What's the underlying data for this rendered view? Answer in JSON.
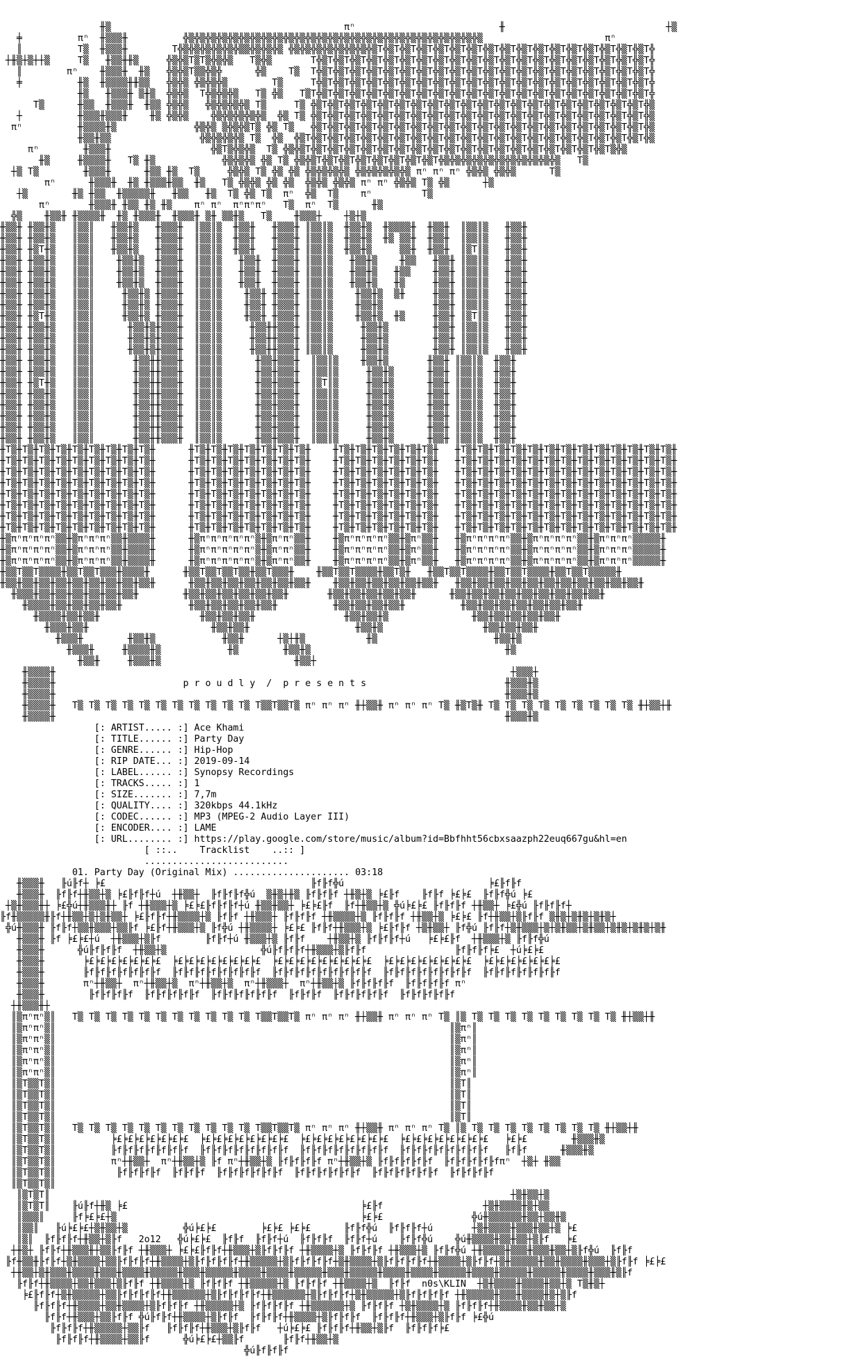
{
  "page": {
    "background_color": "#ffffff",
    "text_color": "#000000",
    "kind": "ascii-nfo-release-file"
  },
  "banner": {
    "presents_text": "p r o u d l y  /  p r e s e n t s",
    "art_year": "2o12",
    "art_signature": "n0s\\KLIN"
  },
  "release": {
    "artist": "Ace Khami",
    "title": "Party Day",
    "genre": "Hip-Hop",
    "rip_date": "2019-09-14",
    "label": "Synopsy Recordings",
    "tracks": "1",
    "size": "7,7m",
    "quality": "320kbps 44.1kHz",
    "codec": "MP3 (MPEG-2 Audio Layer III)",
    "encoder": "LAME",
    "url": "https://play.google.com/store/music/album?id=Bbfhht56cbxsaazph22euq667gu&hl=en",
    "lines": [
      "                 [: ARTIST..... :] Ace Khami",
      "                 [: TITLE...... :] Party Day",
      "                 [: GENRE...... :] Hip-Hop",
      "                 [: RIP DATE... :] 2019-09-14",
      "                 [: LABEL...... :] Synopsy Recordings",
      "                 [: TRACKS..... :] 1",
      "                 [: SIZE....... :] 7,7m",
      "                 [: QUALITY.... :] 320kbps 44.1kHz",
      "                 [: CODEC...... :] MP3 (MPEG-2 Audio Layer III)",
      "                 [: ENCODER.... :] LAME",
      "                 [: URL........ :] https://play.google.com/store/music/album?id=Bbfhht56cbxsaazph22euq667gu&hl=en"
    ]
  },
  "tracklist": {
    "header_lines": [
      "                          [ ::..    Tracklist    ..:: ]",
      "                          .........................."
    ],
    "track_lines": [
      "             01. Party Day (Original Mix) ..................... 03:18",
      ""
    ],
    "tracks": [
      {
        "number": "01",
        "title": "Party Day (Original Mix)",
        "duration": "03:18"
      }
    ]
  },
  "art": {
    "top": [
      "",
      "",
      "                  ╫▒                                          πⁿ                          ╫                             ┼▒",
      "   ╪          πⁿ  ╫▒▒▒╫          ╬▒╬▒╬▒╬▒╬▒╬▒╬▒╬▒╬▒╬▒╬▒╬▒╬▒╬▒╬▒╬▒╬▒╬▒╬▒╬▒╬▒╬▒╬▒╬▒╬▒╬▒╬▒                      πⁿ",
      "   ║          T▒  ╫▒▒▒╫        T╬▒╬▒╬▒╬▒╬▒╬▒▒╬▒╬▒╬▒ ╬▒╬▒╬▒╬▒╬▒╬▒╬▒╬▒T╬▒T╬▒T╬▒T╬▒T╬▒T╬▒T╬▒T╬▒T╬▒T╬▒T╬▒T╬▒T╬▒T╬▒T╬▒T╬▒T╬",
      " ┼╫▒┼▒┼┼▒     T▒   ╫▒▒╫╫▒     ╬▒╬▒T▒T▒╬▒╬▒   T▒╬▒       T╬▒T╬▒T╬▒T╬▒T╬▒T╬▒T╬▒T╬▒T╬▒T╬▒T╬▒T╬▒T╬▒T╬▒T╬▒T╬▒T╬▒T╬▒T╬▒T╬▒T╬",
      "   ║        πⁿ    ╫▒▒▒╫  ╫▒   ╬▒╬▒T▒▒╬▒╬      ╬▒    T▒  T╬▒T╬▒T╬▒T╬▒T╬▒T╬▒T╬▒T╬▒T╬▒T╬▒T╬▒T╬▒T╬▒T╬▒T╬▒T╬▒T╬▒T╬▒T╬▒T╬▒T╬",
      "   ╪          ╫▒  ╫▒▒▒▒╫╫▒▒   ╬▒╬▒ ╬▒╬▒╬▒        T▒     T╬▒T╬▒T╬▒T╬▒T╬▒T╬▒T╬▒T╬▒T╬▒T╬▒T╬▒T╬▒T╬▒T╬▒T╬▒T╬▒T╬▒T╬▒T╬▒T╬▒T╬",
      "              ╫▒   ╫▒▒▒╫ ▒╫▒  ╬▒╬▒  T╬▒╬▒╬▒   T▒ ╬▒   T▒T╬▒T╬▒T╬▒T╬▒T╬▒T╬▒T╬▒T╬▒T╬▒T╬▒T╬▒T╬▒T╬▒T╬▒T╬▒T╬▒T╬▒T╬▒T╬▒T╬▒T╬",
      "      T▒      ╫▒▒  ╫▒▒▒╫  ╫▒▒ ╬▒╬▒   ╬▒╬▒╬▒╬▒ T▒     T▒ ╬▒T╬▒T╬▒T╬▒T╬▒T╬▒T╬▒T╬▒T╬▒T╬▒T╬▒T╬▒T╬▒T╬▒T╬▒T╬▒T╬▒T╬▒T╬▒T╬▒T╬▒",
      "   ┼          ╫▒▒▒╫▒▒▒╫    ╫▒ ╬▒╬▒    ╬▒╬▒╬▒╬▒╬▒  ╬▒ T▒ ╬▒T╬▒T╬▒T╬▒T╬▒T╬▒T╬▒T╬▒T╬▒T╬▒T╬▒T╬▒T╬▒T╬▒T╬▒T╬▒T╬▒T╬▒T╬▒T╬▒T╬▒",
      "  πⁿ          ╫▒▒▒▒╫▒              ╬▒╬▒ ▒╬▒╬▒T▒ ╬▒ T▒   ╬▒T╬▒T╬▒T╬▒T╬▒T╬▒T╬▒T╬▒T╬▒T╬▒T╬▒T╬▒T╬▒T╬▒T╬▒T╬▒T╬▒T╬▒T╬▒T╬▒T╬▒",
      "              ╫▒▒╫▒▒                ╬▒╬▒╬▒╬▒ T▒  ╬▒  ╬▒T╬▒T╬▒T╬▒T╬▒T╬▒T╬▒T╬▒T╬▒T╬▒T╬▒T╬▒T╬▒T╬▒T╬▒T╬▒T╬▒T╬▒T╬▒T╬▒T╬▒T╬▒",
      "     πⁿ        ╫▒▒▒╫                  ╬▒T▒╬▒╬▒  T▒ ╬▒╬▒T╬▒T╬▒T╬▒T╬▒T╬▒T╬▒T╬▒T╬▒T╬▒T╬▒T╬▒T╬▒T╬▒T╬▒T╬▒T╬▒T╬▒T╬▒T▒╬▒",
      "       ╫▒     ╫▒▒▒▒╫   T▒ ╫▒            ╬▒╬▒╬▒ ╬▒ T▒ ╬▒╬▒T╬▒T╬▒T╬▒T╬▒T╬▒T╬▒T╬▒T╬▒╬▒╬▒╬▒╬▒╬▒╬▒╬▒╬▒╬▒╬▒   T▒",
      "  ┼▒ T▒        ╫▒▒▒╫      ╫▒▒ ╫▒  T▒     ╬▒╬▒ T▒ ╬▒ ╬▒ ╬▒╬▒╬▒╬▒ ╬▒╬▒╬▒╬▒╬▒ πⁿ πⁿ πⁿ ╬▒╬▒ ╬▒╬▒      T▒",
      "        πⁿ      ╫▒▒▒╫  ╫▒ ╫▒▒▒╫▒▒  ╫▒   T▒ ╬▒╬▒ ╬▒ ╬▒  ╬▒╬▒ ╬▒╬▒ πⁿ πⁿ ╬▒╬▒ T▒ ╬▒      ┼▒",
      "   ┼▒        ╫▒ ╫▒▒  ╫▒▒▒▒▒╫   ╫▒▒   ╫▒  T▒ ╬▒ T▒  πⁿ  ╬▒  T▒    πⁿ         T▒",
      "       πⁿ       ╫▒▒▒╫ ╫▒▒ ╫▒ ╫▒    πⁿ πⁿ  πⁿπⁿπⁿ   T▒  πⁿ  T▒      ╫▒",
      "  ╬▒    ╫▒▒╫ ╫▒▒▒▒╫  ╫▒ ╫▒▒▒╫  ╫▒▒▒╫ ▒╫ ▒▒╫▒   T▒    ╫▒▒▒┼    ┼▒┼▒",
      "╫▒▒╫ ╫▒▒╫▒   ║▒▒║   ╫▒▒╫▒   ╫▒▒▒╫  ║▒▒║▒  ╫▒▒╫   ╫▒▒▒╫ ║▒▒║▒  ╫▒▒╫▒  ╫▒▒▒▒╫  ╫▒▒╫  ║▒▒║▒   ╫▒▒╫",
      "╫▒▒╫ ╫▒▒╫▒   ║▒▒║   ╫▒▒╫▒   ╫▒▒▒╫  ║▒▒║▒  ╫▒▒╫   ╫▒▒▒╫ ║▒▒║▒  ╫▒▒╫▒  ╫▒ ▒▒╫  ╫▒▒╫  ║▒▒║▒   ╫▒▒╫",
      "╫▒▒╫ ╫▒T╫▒   ║▒▒║   ╫▒▒╫▒   ╫▒▒▒╫  ║▒▒║▒  ╫▒▒╫   ╫▒▒▒╫ ║▒▒║▒  ╫▒▒╫▒     ▒▒╫  ╫▒▒╫  ║▒T║▒   ╫▒▒╫",
      "╫▒▒╫ ╫▒▒╫▒   ║▒▒║    ╫▒▒╫▒  ╫▒▒▒╫  ║▒▒║▒   ╫▒▒╫  ╫▒▒▒╫ ║▒▒║▒   ╫▒▒╫▒    ╫▒▒   ╫▒▒╫ ║▒▒║▒   ╫▒▒╫",
      "╫▒▒╫ ╫▒▒╫▒   ║▒▒║    ╫▒▒╫▒  ╫▒▒▒╫  ║▒▒║▒   ╫▒▒╫  ╫▒▒▒╫ ║▒▒║▒   ╫▒▒╫▒   ╫▒▒    ╫▒▒╫ ║▒▒║▒   ╫▒▒╫",
      "╫▒▒╫ ╫▒▒╫▒   ║▒▒║    ╫▒▒╫▒  ╫▒▒▒╫  ║▒▒║▒   ╫▒▒╫  ╫▒▒▒╫ ║▒▒║▒   ╫▒▒╫▒   ╫▒     ╫▒▒╫ ║▒▒║▒   ╫▒▒╫",
      "╫▒▒╫ ╫▒▒╫▒   ║▒▒║     ╫▒▒╫▒ ╫▒▒▒╫  ║▒▒║▒    ╫▒▒╫ ╫▒▒▒╫ ║▒▒║▒    ╫▒▒╫▒  ▒╫     ╫▒▒╫ ║▒▒║▒   ╫▒▒╫",
      "╫▒▒╫ ╫▒▒╫▒   ║▒▒║     ╫▒▒╫▒ ╫▒▒▒╫  ║▒▒║▒    ╫▒▒╫ ╫▒▒▒╫ ║▒▒║▒    ╫▒▒╫▒         ╫▒▒╫ ║▒▒║▒   ╫▒▒╫",
      "╫▒▒╫ ╫▒T╫▒   ║▒▒║     ╫▒▒╫▒ ╫▒▒▒╫  ║▒▒║▒    ╫▒▒╫ ╫▒▒▒╫ ║▒▒║▒    ╫▒▒╫▒  ╫▒     ╫▒▒╫ ║▒T║▒   ╫▒▒╫",
      "╫▒▒╫ ╫▒▒╫▒   ║▒▒║      ╫▒▒╫▒╫▒▒▒╫  ║▒▒║▒     ╫▒▒╫╫▒▒▒╫ ║▒▒║▒     ╫▒▒╫▒        ╫▒▒╫ ║▒▒║▒   ╫▒▒╫",
      "╫▒▒╫ ╫▒▒╫▒   ║▒▒║      ╫▒▒╫▒╫▒▒▒╫  ║▒▒║▒     ╫▒▒╫╫▒▒▒╫ ║▒▒║▒     ╫▒▒╫▒        ╫▒▒╫ ║▒▒║▒   ╫▒▒╫",
      "╫▒▒╫ ╫▒▒╫▒   ║▒▒║      ╫▒▒╫▒╫▒▒▒╫  ║▒▒║▒     ╫▒▒╫╫▒▒▒╫ ║▒▒║▒     ╫▒▒╫▒        ╫▒▒╫ ║▒▒║▒   ╫▒▒╫",
      "╫▒▒╫ ╫▒▒╫▒   ║▒▒║       ╫▒▒╫╫▒▒▒╫  ║▒▒║▒      ╫▒▒╫▒▒▒╫  ║▒▒║▒    ╫▒▒╫▒       ╫▒▒╫ ║▒▒║▒  ╫▒▒╫",
      "╫▒▒╫ ╫▒▒╫▒   ║▒▒║       ╫▒▒╫╫▒▒▒╫  ║▒▒║▒      ╫▒▒╫▒▒▒╫  ║▒▒║▒     ╫▒▒╫▒      ╫▒▒╫ ║▒▒║▒  ╫▒▒╫",
      "╫▒▒╫ ╫▒T╫▒   ║▒▒║       ╫▒▒╫╫▒▒▒╫  ║▒▒║▒      ╫▒▒╫▒▒▒╫  ║▒T║▒     ╫▒▒╫▒      ╫▒▒╫ ║▒▒║▒  ╫▒▒╫",
      "╫▒▒╫ ╫▒▒╫▒   ║▒▒║       ╫▒▒╫╫▒▒▒╫  ║▒▒║▒      ╫▒▒╫▒▒▒╫  ║▒▒║▒     ╫▒▒╫▒      ╫▒▒╫ ║▒▒║▒  ╫▒▒╫",
      "╫▒▒╫ ╫▒▒╫▒   ║▒▒║       ╫▒▒╫╫▒▒▒╫  ║▒▒║▒      ╫▒▒╫▒▒▒╫  ║▒▒║▒     ╫▒▒╫▒      ╫▒▒╫ ║▒▒║▒  ╫▒▒╫",
      "╫▒▒╫ ╫▒▒╫▒   ║▒▒║       ╫▒▒╫╫▒▒▒╫  ║▒▒║▒      ╫▒▒╫▒▒▒╫  ║▒▒║▒     ╫▒▒╫▒      ╫▒▒╫ ║▒▒║▒  ╫▒▒╫",
      "╫▒▒╫ ╫▒▒╫▒   ║▒▒║       ╫▒▒╫╫▒▒▒╫  ║▒▒║▒      ╫▒▒╫▒▒▒╫  ║▒▒║▒     ╫▒▒╫▒      ╫▒▒╫ ║▒▒║▒  ╫▒▒╫",
      "╫▒▒╫ ╫▒▒╫▒   ║▒▒║       ╫▒▒╫╫▒▒▒╫  ║▒▒║▒      ╫▒▒╫▒▒▒╫  ║▒▒║▒     ╫▒▒╫▒      ╫▒▒╫ ║▒▒║▒  ╫▒▒╫",
      "╫T▒╫T▒╫T▒╫T▒╫T▒╫T▒╫T▒╫T▒╫T▒╫      ╫T▒╫T▒╫T▒╫T▒╫T▒╫T▒╫T▒╫    ╫T▒╫T▒╫T▒╫T▒╫T▒╫T▒╫   ╫T▒╫T▒╫T▒╫T▒╫T▒╫T▒╫T▒╫T▒╫T▒╫T▒╫T▒╫T▒╫T▒╫",
      "╫T▒╫T▒╫T▒╫T▒╫T▒╫T▒╫T▒╫T▒╫T▒╫      ╫T▒╫T▒╫T▒╫T▒╫T▒╫T▒╫T▒╫    ╫T▒╫T▒╫T▒╫T▒╫T▒╫T▒╫   ╫T▒╫T▒╫T▒╫T▒╫T▒╫T▒╫T▒╫T▒╫T▒╫T▒╫T▒╫T▒╫T▒╫",
      "╫T▒╫T▒╫T▒╫T▒╫T▒╫T▒╫T▒╫T▒╫T▒╫      ╫T▒╫T▒╫T▒╫T▒╫T▒╫T▒╫T▒╫    ╫T▒╫T▒╫T▒╫T▒╫T▒╫T▒╫   ╫T▒╫T▒╫T▒╫T▒╫T▒╫T▒╫T▒╫T▒╫T▒╫T▒╫T▒╫T▒╫T▒╫",
      "╫T▒╫T▒╫T▒╫T▒╫T▒╫T▒╫T▒╫T▒╫T▒╫      ╫T▒╫T▒╫T▒╫T▒╫T▒╫T▒╫T▒╫    ╫T▒╫T▒╫T▒╫T▒╫T▒╫T▒╫   ╫T▒╫T▒╫T▒╫T▒╫T▒╫T▒╫T▒╫T▒╫T▒╫T▒╫T▒╫T▒╫T▒╫",
      "╫T▒╫T▒╫T▒╫T▒╫T▒╫T▒╫T▒╫T▒╫T▒╫      ╫T▒╫T▒╫T▒╫T▒╫T▒╫T▒╫T▒╫    ╫T▒╫T▒╫T▒╫T▒╫T▒╫T▒╫   ╫T▒╫T▒╫T▒╫T▒╫T▒╫T▒╫T▒╫T▒╫T▒╫T▒╫T▒╫T▒╫T▒╫",
      "╫T▒╫T▒╫T▒╫T▒╫T▒╫T▒╫T▒╫T▒╫T▒╫      ╫T▒╫T▒╫T▒╫T▒╫T▒╫T▒╫T▒╫    ╫T▒╫T▒╫T▒╫T▒╫T▒╫T▒╫   ╫T▒╫T▒╫T▒╫T▒╫T▒╫T▒╫T▒╫T▒╫T▒╫T▒╫T▒╫T▒╫T▒╫",
      "╫T▒╫T▒╫T▒╫T▒╫T▒╫T▒╫T▒╫T▒╫T▒╫      ╫T▒╫T▒╫T▒╫T▒╫T▒╫T▒╫T▒╫    ╫T▒╫T▒╫T▒╫T▒╫T▒╫T▒╫   ╫T▒╫T▒╫T▒╫T▒╫T▒╫T▒╫T▒╫T▒╫T▒╫T▒╫T▒╫T▒╫T▒╫",
      "╫T▒╫T▒╫T▒╫T▒╫T▒╫T▒╫T▒╫T▒╫T▒╫      ╫T▒╫T▒╫T▒╫T▒╫T▒╫T▒╫T▒╫    ╫T▒╫T▒╫T▒╫T▒╫T▒╫T▒╫   ╫T▒╫T▒╫T▒╫T▒╫T▒╫T▒╫T▒╫T▒╫T▒╫T▒╫T▒╫T▒╫T▒╫",
      "╫▒πⁿπⁿπⁿπⁿ▒▒╫▒πⁿπⁿπⁿ▒▒╫▒▒▒▒╫      ╫▒πⁿπⁿπⁿπⁿπⁿ▒╫▒πⁿπⁿ▒▒╫    ╫▒πⁿπⁿπⁿπⁿ▒▒╫▒πⁿ▒▒╫   ╫▒πⁿπⁿπⁿπⁿ▒▒╫▒πⁿπⁿπⁿπⁿ▒▒╫▒πⁿπⁿπⁿ▒▒▒▒▒╫",
      "╫▒πⁿπⁿπⁿπⁿ▒▒╫▒πⁿπⁿπⁿ▒▒╫▒▒▒▒╫      ╫▒πⁿπⁿπⁿπⁿπⁿ▒╫▒πⁿπⁿ▒▒╫    ╫▒πⁿπⁿπⁿπⁿ▒▒╫▒πⁿ▒▒╫   ╫▒πⁿπⁿπⁿπⁿ▒▒╫▒πⁿπⁿπⁿπⁿ▒▒╫▒πⁿπⁿπⁿ▒▒▒▒▒╫",
      "╫▒πⁿπⁿπⁿπⁿ▒▒╫▒πⁿπⁿπⁿ▒▒╫▒▒▒▒╫      ╫▒πⁿπⁿπⁿπⁿπⁿ▒╫▒πⁿπⁿ▒▒╫    ╫▒πⁿπⁿπⁿπⁿ▒▒╫▒πⁿ▒▒╫   ╫▒πⁿπⁿπⁿπⁿ▒▒╫▒πⁿπⁿπⁿπⁿ▒▒╫▒πⁿπⁿπⁿ▒▒▒▒▒╫",
      "╫▒▒T▒▒T▒▒▒▒╫▒▒T▒▒T▒▒▒╫▒▒▒▒╫      ╫▒▒T▒▒T▒▒T▒▒╫▒▒T▒▒▒╫    ╫▒▒T▒▒T▒▒▒▒╫▒▒T▒╫   ╫▒▒T▒▒T▒▒▒▒╫▒▒T▒▒T▒▒▒▒╫▒▒T▒▒T▒▒▒▒▒╫",
      "╫▒▒╫▒▒╫▒▒╫▒▒╫▒▒╫▒▒╫▒▒╫▒▒╫▒▒╫      ╫▒▒╫▒▒╫▒▒╫▒▒╫▒▒╫▒▒╫▒▒╫    ╫▒▒╫▒▒╫▒▒╫▒▒╫▒▒╫▒▒╫   ╫▒▒╫▒▒╫▒▒╫▒▒╫▒▒╫▒▒╫▒▒╫▒▒╫▒▒╫▒▒╫▒▒╫",
      "  ╫▒▒▒╫▒▒╫▒▒╫▒▒╫▒▒╫▒▒╫▒▒╫        ╫▒▒╫▒▒╫▒▒╫▒▒╫▒▒╫▒▒╫       ╫▒▒╫▒▒╫▒▒╫▒▒╫▒▒╫      ╫▒▒╫▒▒╫▒▒╫▒▒╫▒▒╫▒▒╫▒▒╫▒▒╫▒▒╫",
      "    ╫▒▒▒▒╫▒▒╫▒▒╫▒▒╫▒▒╫            ╫▒▒╫▒▒╫▒▒╫▒▒╫▒▒╫          ╫▒▒╫▒▒╫▒▒╫▒▒╫          ╫▒▒╫▒▒╫▒▒╫▒▒╫▒▒╫▒▒╫▒▒╫",
      "      ╫▒▒▒▒╫▒▒╫▒▒╫                  ╫▒▒╫▒▒╫▒▒╫                ╫▒▒╫▒▒╫▒               ╫▒▒╫▒▒╫▒▒╫▒▒╫▒▒╫",
      "        ╫▒▒▒╫▒▒╫                      ╫▒▒╫▒▒╫                   ╫▒▒╫▒                  ╫▒▒╫▒▒╫▒▒╫",
      "          ╫▒▒▒╫        ╫▒▒╫▒            ╫▒▒╫      ┼▒┼╫▒           ╫▒                     ╫▒▒╫▒",
      "            ╫▒▒▒╫     ╫▒▒▒▒╫▒            ╫▒        ╫▒▒╫▒                                   ╫▒",
      "              ╫▒▒╫     ╫▒▒▒╫▒                        ╫▒▒┼"
    ],
    "presents_block": [
      "    ╫▒▒▒▒╫                                                                                  ┼▒▒▒┼",
      "    ╫▒▒▒▒╫                       p r o u d l y  /  p r e s e n t s                         ╫▒▒▒╫▒",
      "    ╫▒▒▒▒╫                                                                                 ╫▒▒▒╫▒",
      "    ╫▒▒▒▒╫   T▒ T▒ T▒ T▒ T▒ T▒ T▒ T▒ T▒ T▒ T▒ T▒▒T▒▒T▒ πⁿ πⁿ πⁿ ╫┼▒▒╫ πⁿ πⁿ πⁿ T▒ ╫▒T▒╫ T▒ T▒ T▒ T▒ T▒ T▒ T▒ T▒ T▒ ╫┼▒▒┼╫",
      "    ╫▒▒▒▒╫                                                                                 ╫▒▒▒╫▒"
    ],
    "bottom": [
      "   ╫▒▒▒╫   ╟ú╟f┼ ╞£                                     ╟f╟f╬ú                          ╞£╟f╟f",
      "   ╫▒▒▒╫  ╟f╟f┼╫▒▒┼▒ ╞£╟f╟f┼ú  ┼╫▒▒┼  ╟f╟f╟f╬ú  ▒╫▒┼╫▒ ╟f╟f╟f ┼╫▒┼▒ ╞£╟f    ╟f╟f ╞£╞£  ╟f╟f╬ú ╞£",
      " ┼▒╫▒▒▒╫┼ ╞£╬ú┼╫▒▒▒╫┼ ╟f ┼╫▒▒▒┼▒ ╞£╞£╟f╟f╟f┼ú ╫▒▒╫▒▒┼ ╞£╞£╟f  ╟f┼╫▒▒┼▒ ╬ú╞£╞£ ╟f╟f╟f ┼╫▒▒┼ ╞£╬ú ╟f╟f╟f┼",
      "╟f╫▒▒▒▒▒╫╟f┼╫▒▒┼▒┼▒╫▒▒┼ ╞£╟f╟f┼╫▒▒▒▒┼▒ ╟f╟f ┼╫▒▒▒┼ ╟f╟f╟f ┼╫▒▒▒▒┼▒ ╟f╟f╟f ┼╫▒▒┼▒ ╞£╞£ ╟f┼╫▒▒┼▒╟f╟f ▒╫▒┼▒╫▒┼▒╫▒┼",
      " ╬ú╫▒▒▒╫ ╟f╟f┼▒▒╫▒▒▒┼▒▒╟f ╞£╟f┼╫▒▒▒┼▒ ╟f╬ú ┼╫▒▒▒▒┼ ╞£╞£ ╟f╟f┼╫▒▒▒┼▒ ╞£╟f╟f ┼▒╫▒▒┼ ╟f╬ú ╟f╟f┼▒╫▒▒▒┼▒┼▒╫▒▒┼▒╫▒▒┼▒╫▒┼▒╫▒┼▒╫",
      "   ╫▒▒▒╫ ╟f ╞£╞£┼ú  ┼╫▒▒▒┼▒╟f        ╟f╟f┼ú ╫▒▒▒┼▒ ╟f╟f    ┼╫▒▒┼▒ ╟f╟f╟f┼ú   ╞£╞£╟f  ┼╫▒▒▒┼▒ ╟f╟f╬ú",
      "   ╫▒▒▒╫      ╬ú╟f╟f╟f  ┼╫▒▒┼▒                 ╬ú╟f╟f╟f┼╫▒▒▒┼▒╟f╟f                ╟f╟f╟f╞£  ┼ú╞£╞£",
      "   ╫▒▒▒╫       ╞£╞£╞£╞£╞£╞£╞£  ╞£╞£╞£╞£╞£╞£╞£╞£  ╞£╞£╞£╞£╞£╞£╞£╞£╞£  ╞£╞£╞£╞£╞£╞£╞£╞£  ╞£╞£╞£╞£╞£╞£╞£",
      "   ╫▒▒▒╫       ╟f╟f╟f╟f╟f╟f╟f  ╟f╟f╟f╟f╟f╟f╟f╟f  ╟f╟f╟f╟f╟f╟f╟f╟f╟f  ╟f╟f╟f╟f╟f╟f╟f╟f  ╟f╟f╟f╟f╟f╟f╟f",
      "   ╫▒▒▒╫       πⁿ┼╫▒▒┼  πⁿ┼╫▒▒┼▒  πⁿ┼╫▒▒┼▒  πⁿ┼╫▒▒▒┼  πⁿ┼╫▒▒┼▒ ╟f╟f╟f╟f  ╟f╟f╟f╟f πⁿ",
      "   ╫▒▒▒╫        ╟f╟f╟f╟f  ╟f╟f╟f╟f╟f  ╟f╟f╟f╟f╟f╟f  ╟f╟f╟f  ╟f╟f╟f╟f╟f  ╟f╟f╟f╟f╟f",
      "  ┼╫▒▒▒╫┼",
      "  ║▒πⁿπⁿ▒║   T▒ T▒ T▒ T▒ T▒ T▒ T▒ T▒ T▒ T▒ T▒ T▒▒T▒▒T▒ πⁿ πⁿ πⁿ ╫┼▒▒╫ πⁿ πⁿ πⁿ T▒ ║▒ T▒ T▒ T▒ T▒ T▒ T▒ T▒ T▒ T▒ ╫┼▒▒┼╫",
      "  ║▒πⁿπⁿ▒║                                                                       ║▒πⁿ║",
      "  ║▒πⁿπⁿ▒║                                                                       ║▒πⁿ║",
      "  ║▒πⁿπⁿ▒║                                                                       ║▒πⁿ║",
      "  ║▒πⁿπⁿ▒║                                                                       ║▒πⁿ║",
      "  ║▒πⁿπⁿ▒║                                                                       ║▒πⁿ║",
      "  ║▒T▒▒T▒║                                                                       ║▒T║",
      "  ║▒T▒▒T▒║                                                                       ║▒T║",
      "  ║▒T▒▒T▒║                                                                       ║▒T║",
      "  ║▒T▒▒T▒║                                                                       ║▒T║",
      "  ║▒T▒▒T▒║   T▒ T▒ T▒ T▒ T▒ T▒ T▒ T▒ T▒ T▒ T▒ T▒▒T▒▒T▒ πⁿ πⁿ πⁿ ╫┼▒▒╫ πⁿ πⁿ πⁿ T▒ ║▒ T▒ T▒ T▒ T▒ T▒ T▒ T▒ T▒ ╫┼▒▒┼╫",
      "  ║▒T▒▒T▒║          ╞£╞£╞£╞£╞£╞£╞£  ╞£╞£╞£╞£╞£╞£╞£╞£  ╞£╞£╞£╞£╞£╞£╞£╞£  ╞£╞£╞£╞£╞£╞£╞£╞£   ╞£╞£        ╫▒▒▒╫▒",
      "  ║▒T▒▒T▒║          ╟f╟f╟f╟f╟f╟f╟f  ╟f╟f╟f╟f╟f╟f╟f╟f  ╟f╟f╟f╟f╟f╟f╟f╟f  ╟f╟f╟f╟f╟f╟f╟f╟f   ╟f╟f      ╫▒▒▒╫▒",
      "  ║▒T▒▒T▒║          πⁿ┼╫▒▒┼  πⁿ┼╫▒▒┼▒ ╟f πⁿ┼╫▒▒┼▒ ╟f╟f╟f╟f πⁿ┼╫▒▒┼▒ ╟f╟f╟f╟f╟f  ╟f╟f╟f╟f╟fπⁿ  ┼▒┼ ╫▒▒",
      "  ║▒T▒▒T▒║           ╟f╟f╟f╟f  ╟f╟f╟f  ╟f╟f╟f╟f╟f╟f  ╟f╟f╟f╟f╟f╟f  ╟f╟f╟f╟f╟f╟f  ╟f╟f╟f╟f",
      "  ║▒T▒▒T▒║",
      "   ║▒T▒T║                                                                                   ┼▒╫▒▒┼▒",
      "   ║▒T▒T║    ╟ú╟f┼╫▒ ╞£                                          ╞£╟f                  ┼▒╫▒▒▒▒╫▒┼▒▒",
      "   ║▒▒▒║     ╟f╞£╞£┼▒                                            ╞£╞£                ╬ú╫▒▒▒▒▒▒╫▒▒┼▒▒╫▒",
      "   ║▒▒║   ╟ú╞£╞£┼▒╫▒▒┼▒          ╬ú╞£╞£        ╞£╞£ ╞£╞£      ╟f╟f╬ú  ╟f╟f╟f┼ú       ┼▒╫▒▒▒▒╫▒▒▒╫▒▒┼▒ ╞£",
      "   ║▒║  ╟f╟f╟f┼╫▒▒┼▒╟f   2o12   ╬ú╞£╞£  ╟f╟f  ╟f╟f┼ú  ╟f╟f╟f  ╟f╟f┼ú    ╟f╟f╬ú    ╬ú╫▒▒▒▒╫▒▒╫▒▒┼▒╟f   ╞£",
      "  ┼╫▒┼ ╟f╟f┼╫▒▒▒╫┼▒▒╟f╟f ┼╫▒▒▒┼ ╞£╞£╟f╟f┼╫▒▒▒┼▒╟f╟f╟f ┼╫▒▒▒▒┼▒ ╟f╟f╟f ┼╫▒▒▒┼▒ ╟f╟f╬ú ┼╫▒▒▒▒╫▒▒▒╫▒▒▒╫▒▒┼▒╟f╬ú  ╟f╟f",
      " ╟f╫▒▒╫╟f╟f┼▒╫▒▒▒▒┼▒▒╟f╟f╟f┼╫▒▒▒▒┼▒╟f╟f╟f╟f┼╫▒▒▒▒▒┼▒╟f╟f╟f╟f┼▒╫▒▒▒▒┼▒╟f╟f╟f╟f┼╫▒▒▒▒┼▒╟f╟f┼▒╫▒▒▒▒▒╫▒▒╫▒▒▒▒╫▒▒▒┼▒╟f╟f ╞£╞£",
      "  ┼╫▒▒┼▒╫▒▒▒╫▒▒▒▒╫▒▒▒╫▒▒▒▒╫▒▒▒▒▒╫▒▒▒╫▒▒▒▒▒╫▒▒▒▒╫▒▒▒▒╫▒▒▒▒▒╫▒▒▒╫▒▒▒▒▒╫▒▒▒▒╫▒▒▒▒╫▒▒▒▒▒╫▒▒▒▒╫▒▒▒▒▒╫▒▒▒▒▒╫▒▒▒▒╫▒▒▒╫▒╟f",
      "   ╟f╟f┼╫▒▒▒▒┼▒▒╫▒▒▒┼▒╟f╟f ┼╫▒▒▒▒┼▒ ╟f╟f╟f ┼╫▒▒▒▒▒┼▒ ╟f╟f╟f ┼╫▒▒▒▒┼▒  ╟f╟f  n0s\\KLIN  ┼▒╫▒▒▒▒╫▒▒▒▒╫▒▒┼▒ T▒╫▒┼",
      "    ╞£╟f╟f┼▒╫▒▒▒▒▒┼▒▒╟f╟f╟f╟f┼╫▒▒▒▒▒▒┼▒╟f╟f╟f╟f┼╫▒▒▒▒▒▒┼▒╟f╟f╟f┼▒╫▒▒▒▒▒┼▒╟f╟f╟f╟f ┼╫▒▒▒▒▒╫▒▒▒╫▒▒▒▒╫▒┼▒╟f",
      "      ╟f╟f╟f┼╫▒▒▒▒┼▒▒╫▒▒▒▒┼▒╟f╟f╟f ┼╫▒▒▒▒▒┼▒ ╟f╟f╟f╟f ┼╫▒▒▒▒▒▒┼▒ ╟f╟f╟f ┼▒╫▒▒▒▒┼▒ ╟f╟f╟f┼╫▒▒▒▒╫▒▒╫▒▒┼▒",
      "        ╟f╟f┼╫▒▒▒┼▒▒╟f╟f ╬ú╟f╟f┼╫▒▒▒▒┼▒╟f╟f  ╟f╟f╟f┼╫▒▒▒▒┼▒╟f╟f╟f  ╟f╟f╟f┼╫▒▒▒┼▒╟f╟f ╞£╬ú",
      "         ╟f╟f╟f┼╫▒▒▒▒▒┼▒▒╟f   ╟f╟f╟f┼╫▒▒▒┼▒╟f╟f   ┼ú╞£╞£ ╟f╟f╟f┼╫▒▒┼▒╟f  ╟f╟f╟f╞£",
      "          ╟f╟f╟f┼╫▒▒▒▒┼▒▒╟f      ╬ú╞£╞£┼▒▒╟f       ╟f╟f┼╫▒▒┼▒",
      "                                            ╬ú╟f╟f╟f"
    ]
  }
}
